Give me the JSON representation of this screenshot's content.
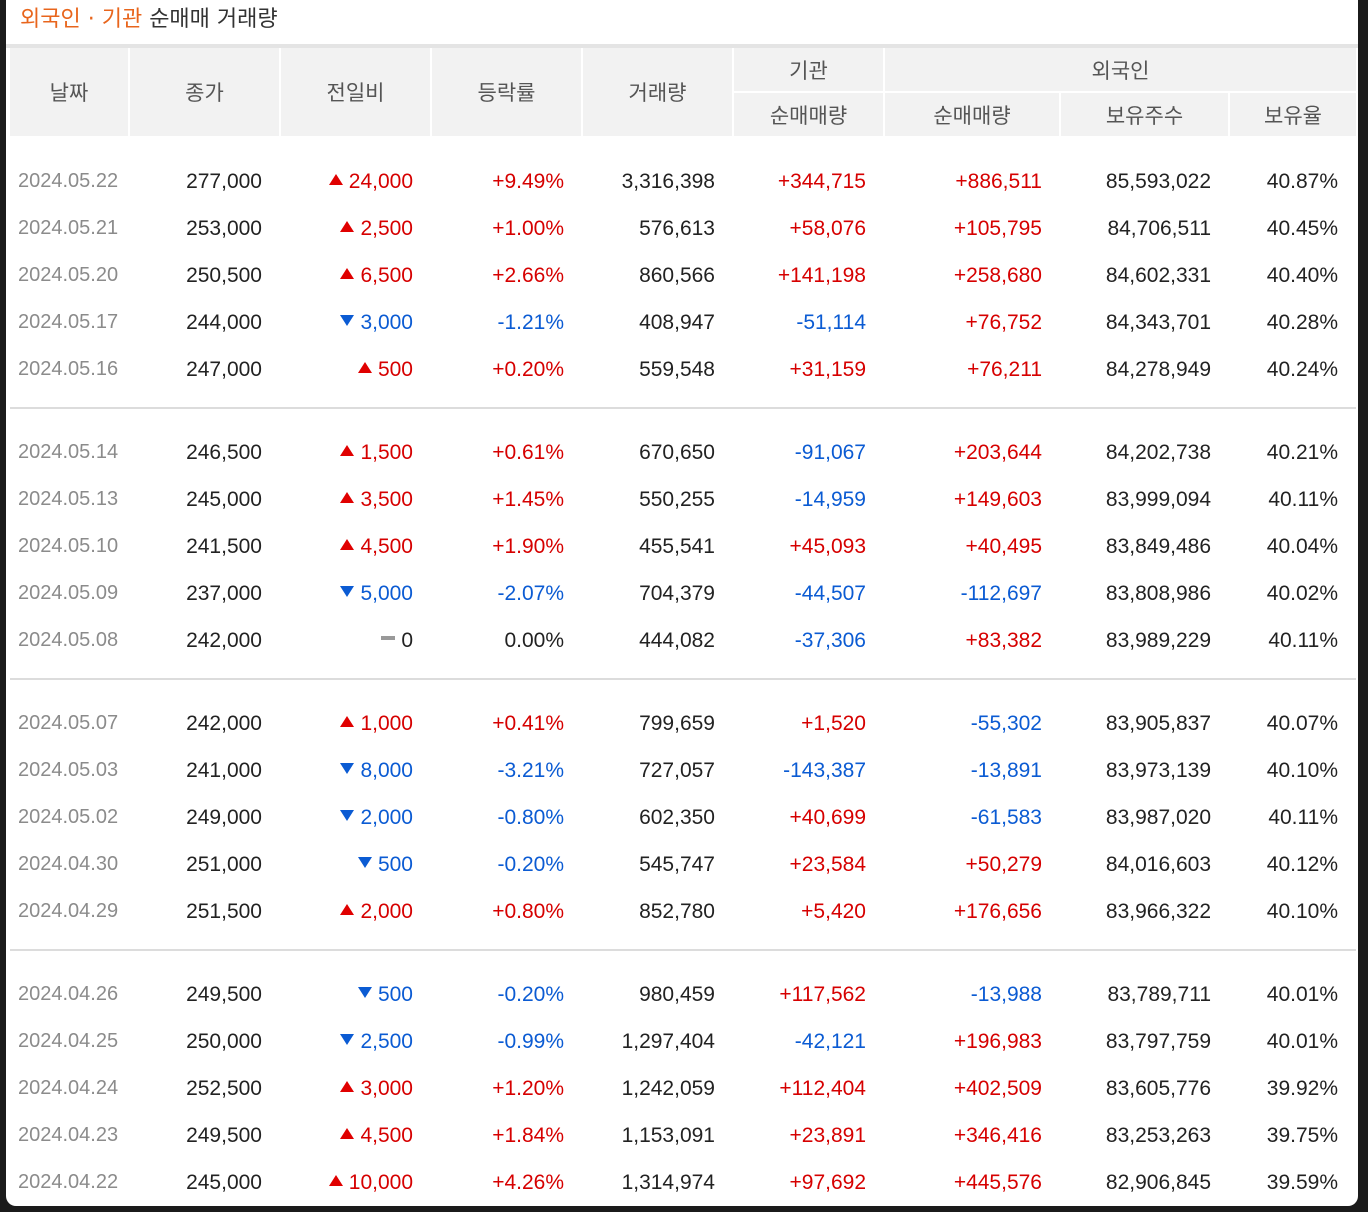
{
  "title": {
    "accent": "외국인 · 기관",
    "rest": "순매매 거래량"
  },
  "headers": {
    "date": "날짜",
    "close": "종가",
    "change": "전일비",
    "rate": "등락률",
    "volume": "거래량",
    "institution": "기관",
    "foreign": "외국인",
    "inst_net": "순매매량",
    "for_net": "순매매량",
    "for_hold": "보유주수",
    "for_ratio": "보유율"
  },
  "colors": {
    "up": "#d60000",
    "down": "#0b5bd3",
    "accent": "#e8651c"
  },
  "groups": [
    [
      {
        "date": "2024.05.22",
        "close": "277,000",
        "dir": "up",
        "change": "24,000",
        "rate": "+9.49%",
        "volume": "3,316,398",
        "inst": "+344,715",
        "for": "+886,511",
        "hold": "85,593,022",
        "ratio": "40.87%"
      },
      {
        "date": "2024.05.21",
        "close": "253,000",
        "dir": "up",
        "change": "2,500",
        "rate": "+1.00%",
        "volume": "576,613",
        "inst": "+58,076",
        "for": "+105,795",
        "hold": "84,706,511",
        "ratio": "40.45%"
      },
      {
        "date": "2024.05.20",
        "close": "250,500",
        "dir": "up",
        "change": "6,500",
        "rate": "+2.66%",
        "volume": "860,566",
        "inst": "+141,198",
        "for": "+258,680",
        "hold": "84,602,331",
        "ratio": "40.40%"
      },
      {
        "date": "2024.05.17",
        "close": "244,000",
        "dir": "down",
        "change": "3,000",
        "rate": "-1.21%",
        "volume": "408,947",
        "inst": "-51,114",
        "for": "+76,752",
        "hold": "84,343,701",
        "ratio": "40.28%"
      },
      {
        "date": "2024.05.16",
        "close": "247,000",
        "dir": "up",
        "change": "500",
        "rate": "+0.20%",
        "volume": "559,548",
        "inst": "+31,159",
        "for": "+76,211",
        "hold": "84,278,949",
        "ratio": "40.24%"
      }
    ],
    [
      {
        "date": "2024.05.14",
        "close": "246,500",
        "dir": "up",
        "change": "1,500",
        "rate": "+0.61%",
        "volume": "670,650",
        "inst": "-91,067",
        "for": "+203,644",
        "hold": "84,202,738",
        "ratio": "40.21%"
      },
      {
        "date": "2024.05.13",
        "close": "245,000",
        "dir": "up",
        "change": "3,500",
        "rate": "+1.45%",
        "volume": "550,255",
        "inst": "-14,959",
        "for": "+149,603",
        "hold": "83,999,094",
        "ratio": "40.11%"
      },
      {
        "date": "2024.05.10",
        "close": "241,500",
        "dir": "up",
        "change": "4,500",
        "rate": "+1.90%",
        "volume": "455,541",
        "inst": "+45,093",
        "for": "+40,495",
        "hold": "83,849,486",
        "ratio": "40.04%"
      },
      {
        "date": "2024.05.09",
        "close": "237,000",
        "dir": "down",
        "change": "5,000",
        "rate": "-2.07%",
        "volume": "704,379",
        "inst": "-44,507",
        "for": "-112,697",
        "hold": "83,808,986",
        "ratio": "40.02%"
      },
      {
        "date": "2024.05.08",
        "close": "242,000",
        "dir": "flat",
        "change": "0",
        "rate": "0.00%",
        "volume": "444,082",
        "inst": "-37,306",
        "for": "+83,382",
        "hold": "83,989,229",
        "ratio": "40.11%"
      }
    ],
    [
      {
        "date": "2024.05.07",
        "close": "242,000",
        "dir": "up",
        "change": "1,000",
        "rate": "+0.41%",
        "volume": "799,659",
        "inst": "+1,520",
        "for": "-55,302",
        "hold": "83,905,837",
        "ratio": "40.07%"
      },
      {
        "date": "2024.05.03",
        "close": "241,000",
        "dir": "down",
        "change": "8,000",
        "rate": "-3.21%",
        "volume": "727,057",
        "inst": "-143,387",
        "for": "-13,891",
        "hold": "83,973,139",
        "ratio": "40.10%"
      },
      {
        "date": "2024.05.02",
        "close": "249,000",
        "dir": "down",
        "change": "2,000",
        "rate": "-0.80%",
        "volume": "602,350",
        "inst": "+40,699",
        "for": "-61,583",
        "hold": "83,987,020",
        "ratio": "40.11%"
      },
      {
        "date": "2024.04.30",
        "close": "251,000",
        "dir": "down",
        "change": "500",
        "rate": "-0.20%",
        "volume": "545,747",
        "inst": "+23,584",
        "for": "+50,279",
        "hold": "84,016,603",
        "ratio": "40.12%"
      },
      {
        "date": "2024.04.29",
        "close": "251,500",
        "dir": "up",
        "change": "2,000",
        "rate": "+0.80%",
        "volume": "852,780",
        "inst": "+5,420",
        "for": "+176,656",
        "hold": "83,966,322",
        "ratio": "40.10%"
      }
    ],
    [
      {
        "date": "2024.04.26",
        "close": "249,500",
        "dir": "down",
        "change": "500",
        "rate": "-0.20%",
        "volume": "980,459",
        "inst": "+117,562",
        "for": "-13,988",
        "hold": "83,789,711",
        "ratio": "40.01%"
      },
      {
        "date": "2024.04.25",
        "close": "250,000",
        "dir": "down",
        "change": "2,500",
        "rate": "-0.99%",
        "volume": "1,297,404",
        "inst": "-42,121",
        "for": "+196,983",
        "hold": "83,797,759",
        "ratio": "40.01%"
      },
      {
        "date": "2024.04.24",
        "close": "252,500",
        "dir": "up",
        "change": "3,000",
        "rate": "+1.20%",
        "volume": "1,242,059",
        "inst": "+112,404",
        "for": "+402,509",
        "hold": "83,605,776",
        "ratio": "39.92%"
      },
      {
        "date": "2024.04.23",
        "close": "249,500",
        "dir": "up",
        "change": "4,500",
        "rate": "+1.84%",
        "volume": "1,153,091",
        "inst": "+23,891",
        "for": "+346,416",
        "hold": "83,253,263",
        "ratio": "39.75%"
      },
      {
        "date": "2024.04.22",
        "close": "245,000",
        "dir": "up",
        "change": "10,000",
        "rate": "+4.26%",
        "volume": "1,314,974",
        "inst": "+97,692",
        "for": "+445,576",
        "hold": "82,906,845",
        "ratio": "39.59%"
      }
    ]
  ]
}
